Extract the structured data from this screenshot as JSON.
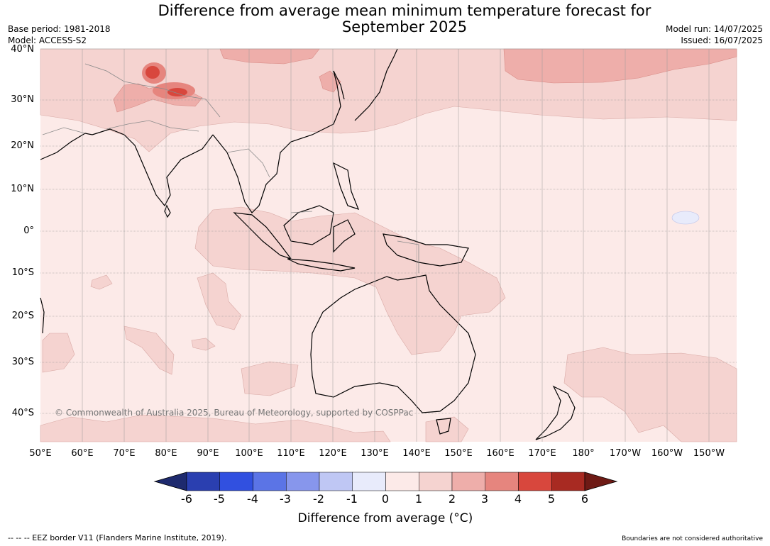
{
  "title_line1": "Difference from average mean minimum temperature forecast for",
  "title_line2": "September 2025",
  "meta": {
    "base_period": "Base period: 1981-2018",
    "model": "Model: ACCESS-S2",
    "model_run": "Model run: 14/07/2025",
    "issued": "Issued: 16/07/2025"
  },
  "lat_labels": [
    "40°N",
    "30°N",
    "20°N",
    "10°N",
    "0°",
    "10°S",
    "20°S",
    "30°S",
    "40°S"
  ],
  "lon_labels": [
    "50°E",
    "60°E",
    "70°E",
    "80°E",
    "90°E",
    "100°E",
    "110°E",
    "120°E",
    "130°E",
    "140°E",
    "150°E",
    "160°E",
    "170°E",
    "180°",
    "170°W",
    "160°W",
    "150°W"
  ],
  "copyright": "© Commonwealth of Australia 2025, Bureau of Meteorology, supported by COSPPac",
  "colorbar": {
    "ticks": [
      "-6",
      "-5",
      "-4",
      "-3",
      "-2",
      "-1",
      "0",
      "1",
      "2",
      "3",
      "4",
      "5",
      "6"
    ],
    "colors": [
      "#1e2a6e",
      "#2a3fb0",
      "#3150e0",
      "#5b74e6",
      "#8796ec",
      "#bfc7f4",
      "#e8ebfb",
      "#fceae8",
      "#f5d3d0",
      "#eeaeaa",
      "#e6857e",
      "#d8473d",
      "#a82a22",
      "#6e1a15"
    ],
    "title": "Difference from average (°C)"
  },
  "footer_left": "--  --  -- EEZ border V11 (Flanders Marine Institute, 2019).",
  "footer_right": "Boundaries are not considered authoritative"
}
